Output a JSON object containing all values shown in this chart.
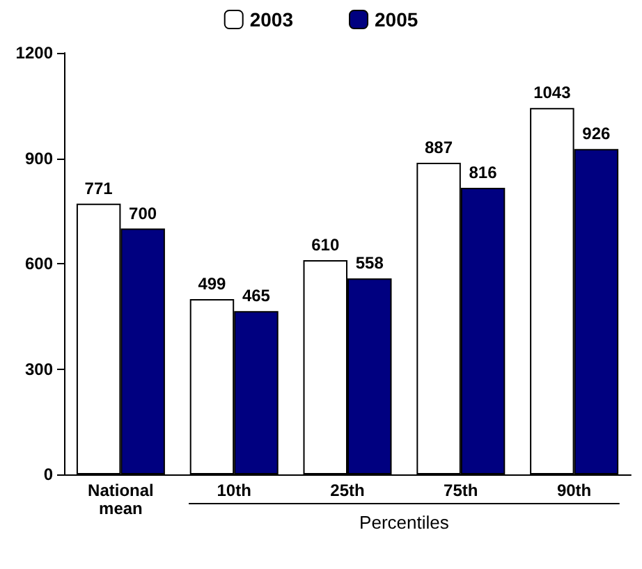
{
  "chart_data": {
    "type": "bar",
    "xlabel": "Percentiles",
    "categories": [
      "National\nmean",
      "10th",
      "25th",
      "75th",
      "90th"
    ],
    "series": [
      {
        "name": "2003",
        "color": "#ffffff",
        "values": [
          771,
          499,
          610,
          887,
          1043
        ]
      },
      {
        "name": "2005",
        "color": "#000080",
        "values": [
          700,
          465,
          558,
          816,
          926
        ]
      }
    ],
    "ylim": [
      0,
      1200
    ],
    "yticks": [
      0,
      300,
      600,
      900,
      1200
    ],
    "grid": false,
    "legend": "top",
    "data_labels": true
  }
}
